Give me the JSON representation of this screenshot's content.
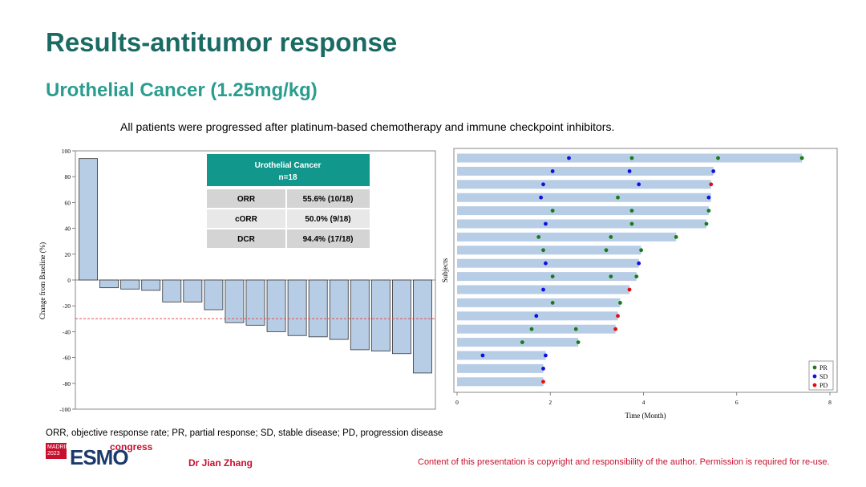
{
  "slide": {
    "title": "Results-antitumor response",
    "subtitle": "Urothelial Cancer (1.25mg/kg)",
    "description": "All patients were progressed after platinum-based chemotherapy and immune checkpoint inhibitors.",
    "footnote": "ORR, objective response rate; PR, partial response; SD, stable disease; PD, progression disease",
    "author": "Dr Jian Zhang",
    "copyright": "Content of this presentation is copyright and responsibility of the author. Permission is required for re-use.",
    "logo": {
      "city": "MADRID",
      "year": "2023",
      "brand": "ESMO",
      "event": "congress"
    }
  },
  "colors": {
    "title": "#1a6b63",
    "subtitle": "#2a9d8f",
    "bar": "#b7cde6",
    "table_header": "#12978d",
    "pr": "#1a7a1a",
    "sd": "#1010e0",
    "pd": "#e01010"
  },
  "response_table": {
    "header_line1": "Urothelial Cancer",
    "header_line2": "n=18",
    "rows": [
      {
        "label": "ORR",
        "value": "55.6% (10/18)"
      },
      {
        "label": "cORR",
        "value": "50.0% (9/18)"
      },
      {
        "label": "DCR",
        "value": "94.4% (17/18)"
      }
    ]
  },
  "chart_data": [
    {
      "type": "bar",
      "ylabel": "Change from Baseline (%)",
      "ylim": [
        -100,
        100
      ],
      "yticks": [
        "100",
        "80",
        "60",
        "40",
        "20",
        "0",
        "-20",
        "-40",
        "-60",
        "-80",
        "-100"
      ],
      "values": [
        94,
        -6,
        -7,
        -8,
        -17,
        -17,
        -23,
        -33,
        -35,
        -40,
        -43,
        -44,
        -46,
        -54,
        -55,
        -57,
        -72
      ],
      "reference_line": -30
    },
    {
      "type": "scatter",
      "subtype": "swimmer",
      "xlabel": "Time (Month)",
      "ylabel": "Subjects",
      "xlim": [
        0,
        8
      ],
      "xticks": [
        "0",
        "2",
        "4",
        "6",
        "8"
      ],
      "legend": {
        "position": "bottom-right",
        "items": [
          {
            "label": "PR",
            "key": "PR"
          },
          {
            "label": "SD",
            "key": "SD"
          },
          {
            "label": "PD",
            "key": "PD"
          }
        ]
      },
      "subjects": [
        {
          "duration": 7.4,
          "events": [
            {
              "t": 2.4,
              "type": "SD"
            },
            {
              "t": 3.75,
              "type": "PR"
            },
            {
              "t": 5.6,
              "type": "PR"
            },
            {
              "t": 7.4,
              "type": "PR"
            }
          ]
        },
        {
          "duration": 5.5,
          "events": [
            {
              "t": 2.05,
              "type": "SD"
            },
            {
              "t": 3.7,
              "type": "SD"
            },
            {
              "t": 5.5,
              "type": "SD"
            }
          ]
        },
        {
          "duration": 5.45,
          "events": [
            {
              "t": 1.85,
              "type": "SD"
            },
            {
              "t": 3.9,
              "type": "SD"
            },
            {
              "t": 5.45,
              "type": "PD"
            }
          ]
        },
        {
          "duration": 5.45,
          "events": [
            {
              "t": 1.8,
              "type": "SD"
            },
            {
              "t": 3.45,
              "type": "PR"
            },
            {
              "t": 5.4,
              "type": "SD"
            }
          ]
        },
        {
          "duration": 5.4,
          "events": [
            {
              "t": 2.05,
              "type": "PR"
            },
            {
              "t": 3.75,
              "type": "PR"
            },
            {
              "t": 5.4,
              "type": "PR"
            }
          ]
        },
        {
          "duration": 5.35,
          "events": [
            {
              "t": 1.9,
              "type": "SD"
            },
            {
              "t": 3.75,
              "type": "PR"
            },
            {
              "t": 5.35,
              "type": "PR"
            }
          ]
        },
        {
          "duration": 4.7,
          "events": [
            {
              "t": 1.75,
              "type": "PR"
            },
            {
              "t": 3.3,
              "type": "PR"
            },
            {
              "t": 4.7,
              "type": "PR"
            }
          ]
        },
        {
          "duration": 3.95,
          "events": [
            {
              "t": 1.85,
              "type": "PR"
            },
            {
              "t": 3.2,
              "type": "PR"
            },
            {
              "t": 3.95,
              "type": "PR"
            }
          ]
        },
        {
          "duration": 3.9,
          "events": [
            {
              "t": 1.9,
              "type": "SD"
            },
            {
              "t": 3.9,
              "type": "SD"
            }
          ]
        },
        {
          "duration": 3.85,
          "events": [
            {
              "t": 2.05,
              "type": "PR"
            },
            {
              "t": 3.3,
              "type": "PR"
            },
            {
              "t": 3.85,
              "type": "PR"
            }
          ]
        },
        {
          "duration": 3.7,
          "events": [
            {
              "t": 1.85,
              "type": "SD"
            },
            {
              "t": 3.7,
              "type": "PD"
            }
          ]
        },
        {
          "duration": 3.5,
          "events": [
            {
              "t": 2.05,
              "type": "PR"
            },
            {
              "t": 3.5,
              "type": "PR"
            }
          ]
        },
        {
          "duration": 3.45,
          "events": [
            {
              "t": 1.7,
              "type": "SD"
            },
            {
              "t": 3.45,
              "type": "PD"
            }
          ]
        },
        {
          "duration": 3.4,
          "events": [
            {
              "t": 1.6,
              "type": "PR"
            },
            {
              "t": 2.55,
              "type": "PR"
            },
            {
              "t": 3.4,
              "type": "PD"
            }
          ]
        },
        {
          "duration": 2.6,
          "events": [
            {
              "t": 1.4,
              "type": "PR"
            },
            {
              "t": 2.6,
              "type": "PR"
            }
          ]
        },
        {
          "duration": 1.9,
          "events": [
            {
              "t": 0.55,
              "type": "SD"
            },
            {
              "t": 1.9,
              "type": "SD"
            }
          ]
        },
        {
          "duration": 1.85,
          "events": [
            {
              "t": 1.85,
              "type": "SD"
            }
          ]
        },
        {
          "duration": 1.85,
          "events": [
            {
              "t": 1.85,
              "type": "PD"
            }
          ]
        }
      ]
    }
  ]
}
